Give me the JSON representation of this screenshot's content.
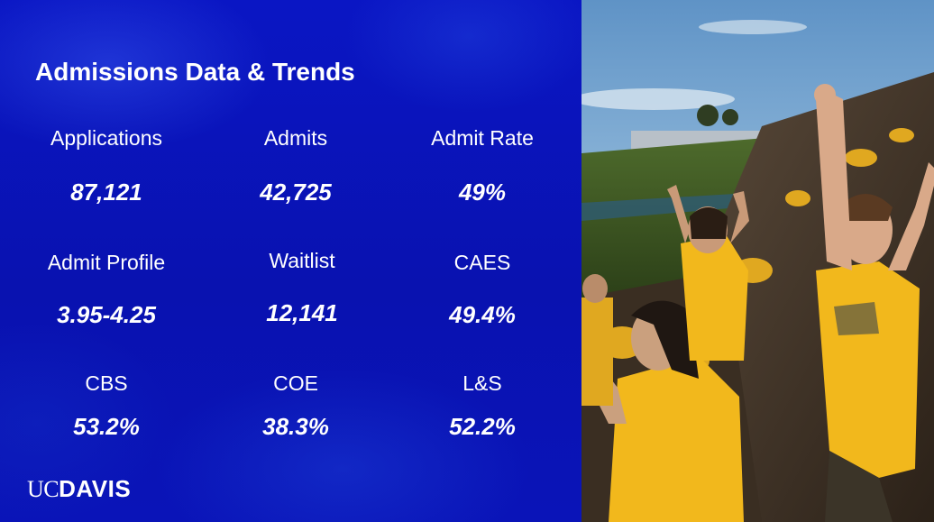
{
  "slide": {
    "title": "Admissions Data & Trends",
    "logo_text": "UCDAVIS"
  },
  "stats": [
    {
      "label": "Applications",
      "value": "87,121"
    },
    {
      "label": "Admits",
      "value": "42,725"
    },
    {
      "label": "Admit Rate",
      "value": "49%"
    },
    {
      "label": "Admit Profile",
      "value": "3.95-4.25"
    },
    {
      "label": "Waitlist",
      "value": "12,141"
    },
    {
      "label": "CAES",
      "value": "49.4%"
    },
    {
      "label": "CBS",
      "value": "53.2%"
    },
    {
      "label": "COE",
      "value": "38.3%"
    },
    {
      "label": "L&S",
      "value": "52.2%"
    }
  ],
  "colors": {
    "background": "#0a14b8",
    "text": "#ffffff",
    "shirt": "#f2b81c",
    "sky": "#9cc4e0"
  }
}
